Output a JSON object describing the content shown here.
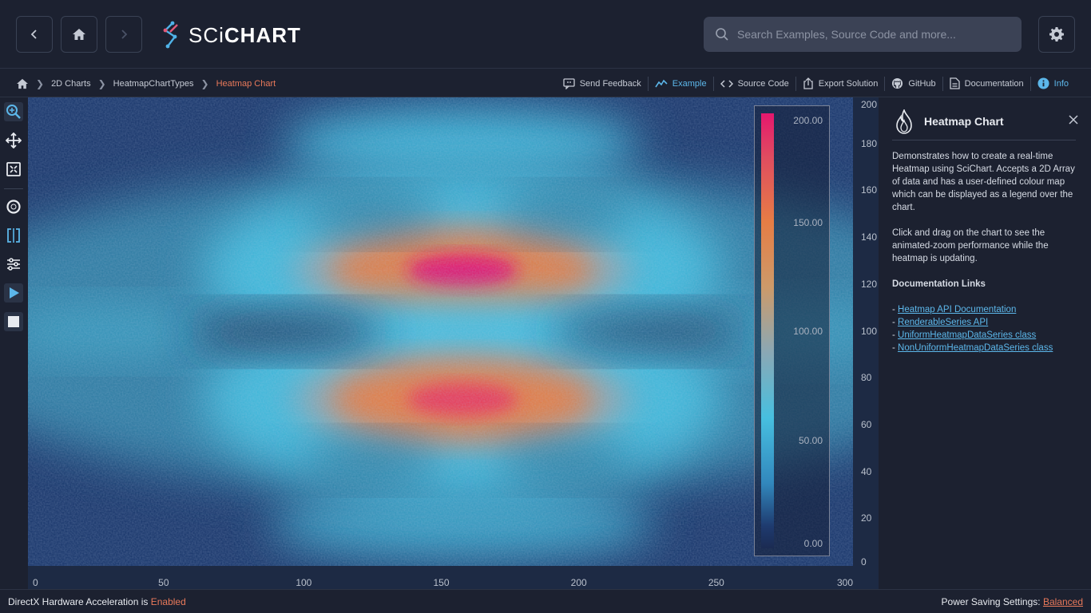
{
  "app": {
    "brand_light": "SCi",
    "brand_bold": "CHART",
    "search_placeholder": "Search Examples, Source Code and more..."
  },
  "nav": {
    "back_icon": "chevron-left-icon",
    "home_icon": "home-icon",
    "forward_icon": "chevron-right-icon",
    "settings_icon": "gear-icon"
  },
  "breadcrumb": {
    "items": [
      "2D Charts",
      "HeatmapChartTypes",
      "Heatmap Chart"
    ]
  },
  "actions": [
    {
      "label": "Send Feedback",
      "icon": "feedback-icon"
    },
    {
      "label": "Example",
      "icon": "chart-line-icon"
    },
    {
      "label": "Source Code",
      "icon": "code-icon"
    },
    {
      "label": "Export Solution",
      "icon": "export-icon"
    },
    {
      "label": "GitHub",
      "icon": "github-icon"
    },
    {
      "label": "Documentation",
      "icon": "document-icon"
    },
    {
      "label": "Info",
      "icon": "info-icon"
    }
  ],
  "toolbar": {
    "tools": [
      "zoom-icon",
      "pan-icon",
      "zoom-extents-icon",
      "rollover-icon",
      "cursor-icon",
      "settings-sliders-icon",
      "play-icon",
      "stop-icon"
    ]
  },
  "chart_data": {
    "type": "heatmap",
    "title": "",
    "xlabel": "",
    "ylabel": "",
    "xlim": [
      0,
      300
    ],
    "ylim": [
      0,
      200
    ],
    "x_ticks": [
      0,
      50,
      100,
      150,
      200,
      250,
      300
    ],
    "y_ticks": [
      0,
      20,
      40,
      60,
      80,
      100,
      120,
      140,
      160,
      180,
      200
    ],
    "y_axis_position": "right",
    "colormap": {
      "min": 0,
      "max": 200,
      "stops": [
        {
          "value": 0,
          "color": "#1b2b52"
        },
        {
          "value": 50,
          "color": "#47bfe0"
        },
        {
          "value": 100,
          "color": "#8aa8b5"
        },
        {
          "value": 150,
          "color": "#e67d45"
        },
        {
          "value": 200,
          "color": "#e5176e"
        }
      ],
      "legend_labels": [
        "200.00",
        "150.00",
        "100.00",
        "50.00",
        "0.00"
      ],
      "legend_placement": "right"
    },
    "peaks": [
      {
        "x": 158,
        "y": 126,
        "value": 200
      },
      {
        "x": 158,
        "y": 71,
        "value": 180
      }
    ]
  },
  "info": {
    "title": "Heatmap Chart",
    "description": "Demonstrates how to create a real-time Heatmap using SciChart. Accepts a 2D Array of data and has a user-defined colour map which can be displayed as a legend over the chart.",
    "instructions": "Click and drag on the chart to see the animated-zoom performance while the heatmap is updating.",
    "links_heading": "Documentation Links",
    "links": [
      "Heatmap API Documentation",
      "RenderableSeries API",
      "UniformHeatmapDataSeries class",
      "NonUniformHeatmapDataSeries class"
    ]
  },
  "footer": {
    "accel_label": "DirectX Hardware Acceleration is ",
    "accel_value": "Enabled",
    "power_label": "Power Saving Settings: ",
    "power_value": "Balanced"
  }
}
